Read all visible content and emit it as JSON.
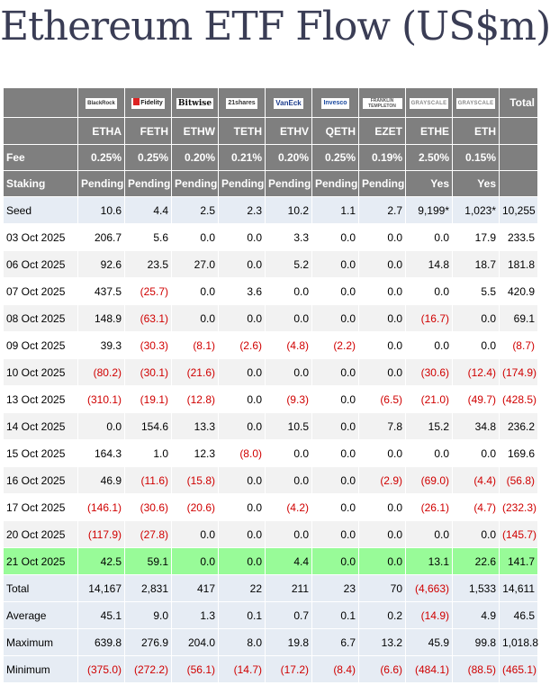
{
  "title": "Ethereum ETF Flow (US$m)",
  "colors": {
    "header_bg": "#7f7f7f",
    "negative": "#d00000",
    "highlight_row": "#98fb98",
    "summary_bg": "#e6ecf4"
  },
  "header": {
    "total_label": "Total",
    "logos": [
      "BlackRock",
      "Fidelity",
      "Bitwise",
      "21shares",
      "VanEck",
      "Invesco",
      "FRANKLIN TEMPLETON",
      "GRAYSCALE",
      "GRAYSCALE"
    ],
    "tickers": [
      "ETHA",
      "FETH",
      "ETHW",
      "TETH",
      "ETHV",
      "QETH",
      "EZET",
      "ETHE",
      "ETH"
    ],
    "fee": {
      "label": "Fee",
      "values": [
        "0.25%",
        "0.25%",
        "0.20%",
        "0.21%",
        "0.20%",
        "0.25%",
        "0.19%",
        "2.50%",
        "0.15%"
      ]
    },
    "staking": {
      "label": "Staking",
      "values": [
        "Pending",
        "Pending",
        "Pending",
        "Pending",
        "Pending",
        "Pending",
        "Pending",
        "Yes",
        "Yes"
      ]
    }
  },
  "seed": {
    "label": "Seed",
    "values": [
      "10.6",
      "4.4",
      "2.5",
      "2.3",
      "10.2",
      "1.1",
      "2.7",
      "9,199*",
      "1,023*",
      "10,255"
    ]
  },
  "rows": [
    {
      "date": "03 Oct 2025",
      "values": [
        "206.7",
        "5.6",
        "0.0",
        "0.0",
        "3.3",
        "0.0",
        "0.0",
        "0.0",
        "17.9",
        "233.5"
      ]
    },
    {
      "date": "06 Oct 2025",
      "values": [
        "92.6",
        "23.5",
        "27.0",
        "0.0",
        "5.2",
        "0.0",
        "0.0",
        "14.8",
        "18.7",
        "181.8"
      ]
    },
    {
      "date": "07 Oct 2025",
      "values": [
        "437.5",
        "(25.7)",
        "0.0",
        "3.6",
        "0.0",
        "0.0",
        "0.0",
        "0.0",
        "5.5",
        "420.9"
      ]
    },
    {
      "date": "08 Oct 2025",
      "values": [
        "148.9",
        "(63.1)",
        "0.0",
        "0.0",
        "0.0",
        "0.0",
        "0.0",
        "(16.7)",
        "0.0",
        "69.1"
      ]
    },
    {
      "date": "09 Oct 2025",
      "values": [
        "39.3",
        "(30.3)",
        "(8.1)",
        "(2.6)",
        "(4.8)",
        "(2.2)",
        "0.0",
        "0.0",
        "0.0",
        "(8.7)"
      ]
    },
    {
      "date": "10 Oct 2025",
      "values": [
        "(80.2)",
        "(30.1)",
        "(21.6)",
        "0.0",
        "0.0",
        "0.0",
        "0.0",
        "(30.6)",
        "(12.4)",
        "(174.9)"
      ]
    },
    {
      "date": "13 Oct 2025",
      "values": [
        "(310.1)",
        "(19.1)",
        "(12.8)",
        "0.0",
        "(9.3)",
        "0.0",
        "(6.5)",
        "(21.0)",
        "(49.7)",
        "(428.5)"
      ]
    },
    {
      "date": "14 Oct 2025",
      "values": [
        "0.0",
        "154.6",
        "13.3",
        "0.0",
        "10.5",
        "0.0",
        "7.8",
        "15.2",
        "34.8",
        "236.2"
      ]
    },
    {
      "date": "15 Oct 2025",
      "values": [
        "164.3",
        "1.0",
        "12.3",
        "(8.0)",
        "0.0",
        "0.0",
        "0.0",
        "0.0",
        "0.0",
        "169.6"
      ]
    },
    {
      "date": "16 Oct 2025",
      "values": [
        "46.9",
        "(11.6)",
        "(15.8)",
        "0.0",
        "0.0",
        "0.0",
        "(2.9)",
        "(69.0)",
        "(4.4)",
        "(56.8)"
      ]
    },
    {
      "date": "17 Oct 2025",
      "values": [
        "(146.1)",
        "(30.6)",
        "(20.6)",
        "0.0",
        "(4.2)",
        "0.0",
        "0.0",
        "(26.1)",
        "(4.7)",
        "(232.3)"
      ]
    },
    {
      "date": "20 Oct 2025",
      "values": [
        "(117.9)",
        "(27.8)",
        "0.0",
        "0.0",
        "0.0",
        "0.0",
        "0.0",
        "0.0",
        "0.0",
        "(145.7)"
      ]
    },
    {
      "date": "21 Oct 2025",
      "values": [
        "42.5",
        "59.1",
        "0.0",
        "0.0",
        "4.4",
        "0.0",
        "0.0",
        "13.1",
        "22.6",
        "141.7"
      ],
      "highlight": true
    }
  ],
  "summary": [
    {
      "label": "Total",
      "values": [
        "14,167",
        "2,831",
        "417",
        "22",
        "211",
        "23",
        "70",
        "(4,663)",
        "1,533",
        "14,611"
      ]
    },
    {
      "label": "Average",
      "values": [
        "45.1",
        "9.0",
        "1.3",
        "0.1",
        "0.7",
        "0.1",
        "0.2",
        "(14.9)",
        "4.9",
        "46.5"
      ]
    },
    {
      "label": "Maximum",
      "values": [
        "639.8",
        "276.9",
        "204.0",
        "8.0",
        "19.8",
        "6.7",
        "13.2",
        "45.9",
        "99.8",
        "1,018.8"
      ]
    },
    {
      "label": "Minimum",
      "values": [
        "(375.0)",
        "(272.2)",
        "(56.1)",
        "(14.7)",
        "(17.2)",
        "(8.4)",
        "(6.6)",
        "(484.1)",
        "(88.5)",
        "(465.1)"
      ]
    }
  ]
}
